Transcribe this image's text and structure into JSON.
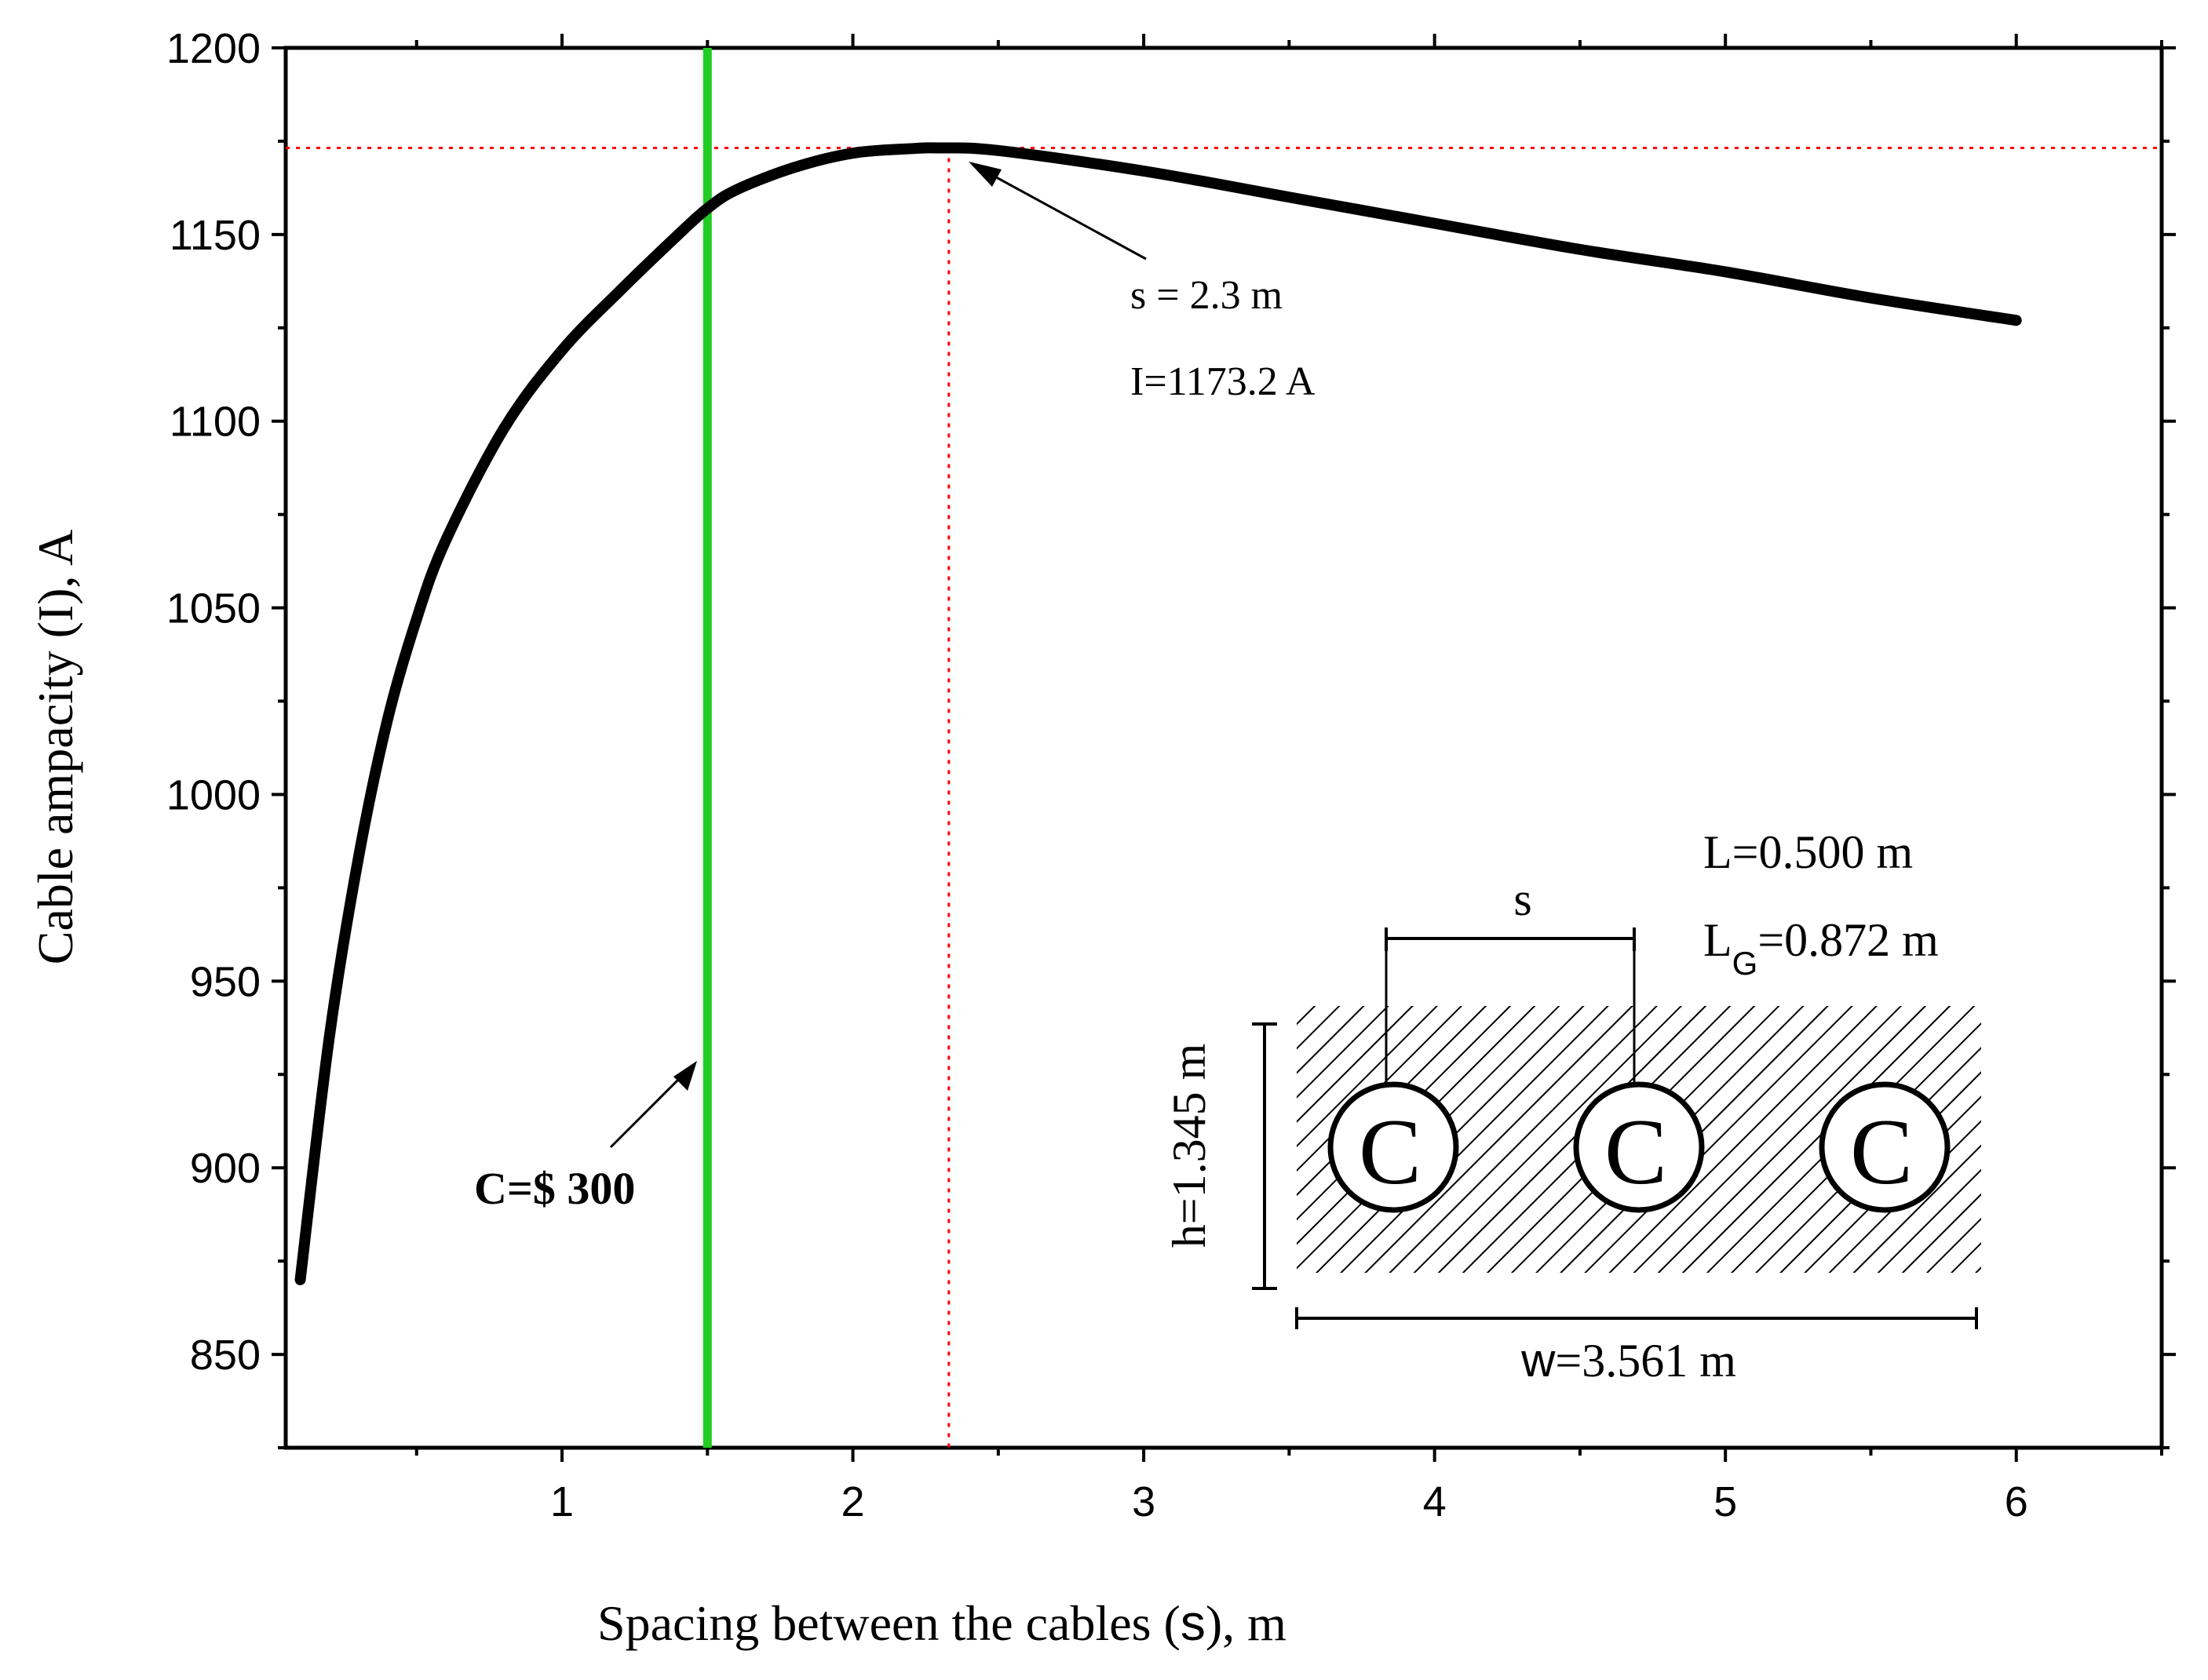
{
  "chart_data": {
    "type": "line",
    "xlabel_prefix": "Spacing between the cables (",
    "xlabel_symbol": "s",
    "xlabel_suffix": "), m",
    "ylabel_prefix": "Cable ampacity (",
    "ylabel_symbol": "I",
    "ylabel_suffix": "),  A",
    "xlim": [
      0.05,
      6.5
    ],
    "ylim": [
      825,
      1200
    ],
    "x_ticks": [
      1,
      2,
      3,
      4,
      5,
      6
    ],
    "y_ticks": [
      850,
      900,
      950,
      1000,
      1050,
      1100,
      1150,
      1200
    ],
    "grid": false,
    "series": [
      {
        "color": "#000000",
        "x": [
          0.1,
          0.2,
          0.3,
          0.4,
          0.5,
          0.6,
          0.8,
          1.0,
          1.2,
          1.4,
          1.5,
          1.6,
          1.8,
          2.0,
          2.2,
          2.3,
          2.5,
          3.0,
          3.5,
          4.0,
          4.5,
          5.0,
          5.5,
          6.0
        ],
        "y": [
          870,
          935,
          983,
          1020,
          1047,
          1068,
          1098,
          1119,
          1135,
          1150,
          1157,
          1162,
          1168,
          1171.8,
          1173,
          1173.2,
          1172.5,
          1167,
          1160,
          1153,
          1146,
          1140,
          1133,
          1127
        ]
      }
    ],
    "reference_lines": {
      "vertical_cost_x": 1.5,
      "vertical_cost_color": "#22cc22",
      "optimum_x": 2.33,
      "optimum_y": 1173.2,
      "optimum_color": "#ff0000"
    },
    "annotations": {
      "optimum_s": "s = 2.3 m",
      "optimum_i": "I=1173.2 A",
      "cost": "C=$ 300"
    },
    "inset": {
      "L_label": "L=0.500 m",
      "LG_main": "L",
      "LG_sub": "G",
      "LG_value": "=0.872 m",
      "s_label": "s",
      "h_label": "h=1.345 m",
      "w_label": "w=3.561 m",
      "cable_letter": "C"
    }
  }
}
